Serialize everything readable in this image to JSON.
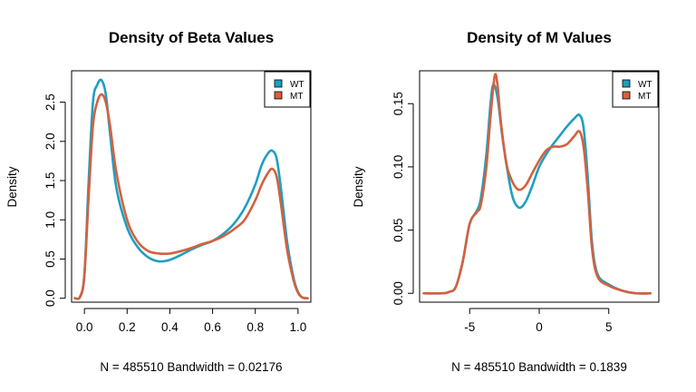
{
  "colors": {
    "wt": "#1f9fbf",
    "mt": "#d4603f"
  },
  "chart_data": [
    {
      "type": "line",
      "title": "Density of Beta Values",
      "xlabel": "N = 485510   Bandwidth = 0.02176",
      "ylabel": "Density",
      "xlim": [
        -0.06,
        1.06
      ],
      "ylim": [
        -0.05,
        2.9
      ],
      "xticks": [
        "0.0",
        "0.2",
        "0.4",
        "0.6",
        "0.8",
        "1.0"
      ],
      "xtick_values": [
        0.0,
        0.2,
        0.4,
        0.6,
        0.8,
        1.0
      ],
      "yticks": [
        "0.0",
        "0.5",
        "1.0",
        "1.5",
        "2.0",
        "2.5"
      ],
      "ytick_values": [
        0.0,
        0.5,
        1.0,
        1.5,
        2.0,
        2.5
      ],
      "legend": {
        "position": "top-right",
        "entries": [
          "WT",
          "MT"
        ]
      },
      "series": [
        {
          "name": "WT",
          "color": "#1f9fbf",
          "x": [
            -0.045,
            -0.02,
            0.0,
            0.02,
            0.04,
            0.06,
            0.08,
            0.1,
            0.12,
            0.15,
            0.2,
            0.25,
            0.3,
            0.35,
            0.4,
            0.45,
            0.5,
            0.55,
            0.6,
            0.65,
            0.7,
            0.75,
            0.8,
            0.83,
            0.86,
            0.88,
            0.9,
            0.92,
            0.95,
            0.98,
            1.0,
            1.02,
            1.045
          ],
          "y": [
            0.0,
            0.02,
            0.3,
            1.5,
            2.5,
            2.72,
            2.78,
            2.6,
            2.1,
            1.4,
            0.9,
            0.65,
            0.52,
            0.47,
            0.49,
            0.55,
            0.62,
            0.68,
            0.73,
            0.82,
            0.95,
            1.15,
            1.45,
            1.7,
            1.85,
            1.88,
            1.78,
            1.4,
            0.7,
            0.25,
            0.08,
            0.01,
            0.0
          ]
        },
        {
          "name": "MT",
          "color": "#d4603f",
          "x": [
            -0.045,
            -0.02,
            0.0,
            0.02,
            0.04,
            0.06,
            0.08,
            0.1,
            0.12,
            0.15,
            0.2,
            0.25,
            0.3,
            0.35,
            0.4,
            0.45,
            0.5,
            0.55,
            0.6,
            0.65,
            0.7,
            0.75,
            0.8,
            0.83,
            0.86,
            0.88,
            0.9,
            0.92,
            0.95,
            0.98,
            1.0,
            1.02,
            1.045
          ],
          "y": [
            0.0,
            0.02,
            0.3,
            1.3,
            2.2,
            2.5,
            2.6,
            2.5,
            2.2,
            1.6,
            1.0,
            0.72,
            0.6,
            0.57,
            0.57,
            0.6,
            0.64,
            0.69,
            0.73,
            0.79,
            0.88,
            1.0,
            1.25,
            1.45,
            1.6,
            1.65,
            1.55,
            1.2,
            0.6,
            0.22,
            0.07,
            0.01,
            0.0
          ]
        }
      ]
    },
    {
      "type": "line",
      "title": "Density of M Values",
      "xlabel": "N = 485510   Bandwidth = 0.1839",
      "ylabel": "Density",
      "xlim": [
        -8.6,
        8.6
      ],
      "ylim": [
        -0.007,
        0.176
      ],
      "xticks": [
        "-5",
        "0",
        "5"
      ],
      "xtick_values": [
        -5,
        0,
        5
      ],
      "yticks": [
        "0.00",
        "0.05",
        "0.10",
        "0.15"
      ],
      "ytick_values": [
        0.0,
        0.05,
        0.1,
        0.15
      ],
      "legend": {
        "position": "top-right",
        "entries": [
          "WT",
          "MT"
        ]
      },
      "series": [
        {
          "name": "WT",
          "color": "#1f9fbf",
          "x": [
            -8.3,
            -7.0,
            -6.5,
            -6.0,
            -5.5,
            -5.0,
            -4.5,
            -4.2,
            -3.8,
            -3.5,
            -3.3,
            -3.0,
            -2.6,
            -2.0,
            -1.5,
            -1.0,
            -0.5,
            0.0,
            0.5,
            1.0,
            1.5,
            2.0,
            2.5,
            2.9,
            3.2,
            3.5,
            3.8,
            4.2,
            5.0,
            6.0,
            7.0,
            8.0
          ],
          "y": [
            0.0,
            0.0,
            0.001,
            0.005,
            0.025,
            0.055,
            0.065,
            0.075,
            0.11,
            0.15,
            0.165,
            0.155,
            0.12,
            0.08,
            0.068,
            0.072,
            0.085,
            0.1,
            0.11,
            0.118,
            0.125,
            0.132,
            0.138,
            0.141,
            0.13,
            0.09,
            0.04,
            0.015,
            0.007,
            0.002,
            0.0,
            0.0
          ]
        },
        {
          "name": "MT",
          "color": "#d4603f",
          "x": [
            -8.3,
            -7.0,
            -6.5,
            -6.0,
            -5.5,
            -5.0,
            -4.5,
            -4.2,
            -3.8,
            -3.5,
            -3.2,
            -3.0,
            -2.8,
            -2.4,
            -2.0,
            -1.5,
            -1.0,
            -0.5,
            0.0,
            0.5,
            1.0,
            1.5,
            2.0,
            2.5,
            2.9,
            3.2,
            3.5,
            3.8,
            4.2,
            5.0,
            6.0,
            7.0,
            8.0
          ],
          "y": [
            0.0,
            0.0,
            0.001,
            0.005,
            0.025,
            0.055,
            0.064,
            0.07,
            0.1,
            0.14,
            0.172,
            0.165,
            0.14,
            0.105,
            0.09,
            0.082,
            0.085,
            0.095,
            0.105,
            0.113,
            0.116,
            0.116,
            0.118,
            0.124,
            0.128,
            0.115,
            0.08,
            0.035,
            0.013,
            0.006,
            0.002,
            0.0,
            0.0
          ]
        }
      ]
    }
  ]
}
